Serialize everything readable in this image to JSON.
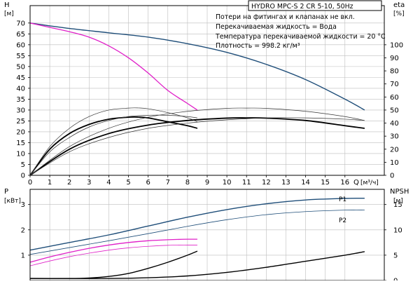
{
  "chart_data": [
    {
      "type": "line",
      "panel": "head-efficiency",
      "title": "HYDRO MPC-S 2 CR 5-10, 50Hz",
      "notes": [
        "Потери на фитингах и клапанах не вкл.",
        "Перекачиваемая жидкость = Вода",
        "Температура перекачиваемой жидкости = 20 °C",
        "Плотность = 998.2 кг/м³"
      ],
      "xlabel": "Q",
      "xunit": "[м³/ч]",
      "xlim": [
        0,
        18
      ],
      "xticks": [
        "0",
        "1",
        "2",
        "3",
        "4",
        "5",
        "6",
        "7",
        "8",
        "9",
        "10",
        "11",
        "12",
        "13",
        "14",
        "15",
        "16"
      ],
      "ylabel_left": "H",
      "yunit_left": "[м]",
      "ylim_left": [
        0,
        78
      ],
      "yticks_left": [
        "0",
        "5",
        "10",
        "15",
        "20",
        "25",
        "30",
        "35",
        "40",
        "45",
        "50",
        "55",
        "60",
        "65",
        "70"
      ],
      "ylabel_right": "eta",
      "yunit_right": "[%]",
      "ylim_right": [
        0,
        130
      ],
      "yticks_right": [
        "0",
        "10",
        "20",
        "30",
        "40",
        "50",
        "60",
        "70",
        "80",
        "90",
        "100"
      ],
      "grid": true,
      "colors": {
        "blue": "#1f4e79",
        "magenta": "#e020c8",
        "black": "#000000",
        "gray": "#333333"
      },
      "series": [
        {
          "axis": "left",
          "color": "blue",
          "width": 1.4,
          "x": [
            0,
            2,
            4,
            6,
            8,
            10,
            12,
            14,
            16,
            17
          ],
          "y": [
            70,
            67.5,
            65.5,
            63.5,
            60.5,
            56.5,
            51,
            44,
            35,
            30
          ]
        },
        {
          "axis": "left",
          "color": "magenta",
          "width": 1.3,
          "x": [
            0,
            1,
            2,
            3,
            4,
            5,
            6,
            7,
            8,
            8.5
          ],
          "y": [
            70,
            68,
            66,
            63.5,
            59.5,
            54,
            47,
            39,
            33,
            30
          ]
        },
        {
          "axis": "right",
          "color": "black",
          "width": 1.8,
          "x": [
            0,
            1,
            2,
            3,
            4,
            5,
            5.5,
            6,
            7,
            8,
            8.5
          ],
          "y": [
            0,
            20,
            32,
            39,
            43,
            44.5,
            44.6,
            44,
            41,
            38,
            36
          ]
        },
        {
          "axis": "right",
          "color": "black",
          "width": 1.8,
          "x": [
            0,
            2,
            4,
            6,
            8,
            10,
            11,
            12,
            14,
            16,
            17
          ],
          "y": [
            0,
            20,
            32,
            38.5,
            42,
            43.8,
            44,
            43.8,
            42,
            38,
            36
          ]
        },
        {
          "axis": "right",
          "color": "gray",
          "width": 0.7,
          "x": [
            0,
            1,
            2,
            3,
            4,
            5,
            5.5,
            6,
            7,
            8,
            8.5
          ],
          "y": [
            0,
            22,
            36,
            45,
            50,
            51.5,
            51.6,
            51,
            48,
            44,
            41
          ]
        },
        {
          "axis": "right",
          "color": "gray",
          "width": 0.7,
          "x": [
            0,
            1,
            2,
            3,
            4,
            5,
            6,
            7,
            8,
            8.5
          ],
          "y": [
            0,
            18,
            29,
            37,
            42,
            45,
            46,
            46,
            45,
            44
          ]
        },
        {
          "axis": "right",
          "color": "gray",
          "width": 0.7,
          "x": [
            0,
            2,
            4,
            6,
            8,
            10,
            11,
            12,
            14,
            16,
            17
          ],
          "y": [
            0,
            22,
            36,
            44.5,
            49,
            51.3,
            51.5,
            51.3,
            49,
            45,
            42
          ]
        },
        {
          "axis": "right",
          "color": "gray",
          "width": 0.7,
          "x": [
            0,
            2,
            4,
            6,
            8,
            10,
            12,
            14,
            16,
            17
          ],
          "y": [
            0,
            18,
            29,
            36,
            40,
            42.5,
            44,
            44,
            43,
            42
          ]
        }
      ]
    },
    {
      "type": "line",
      "panel": "power-npsh",
      "xlim": [
        0,
        18
      ],
      "ylabel_left": "P",
      "yunit_left": "[кВт]",
      "ylim_left": [
        0,
        3.6
      ],
      "yticks_left": [
        "1",
        "2",
        "3"
      ],
      "ylabel_right": "NPSH",
      "yunit_right": "[м]",
      "ylim_right": [
        0,
        18
      ],
      "yticks_right": [
        "0",
        "5",
        "10",
        "15"
      ],
      "grid": true,
      "series": [
        {
          "axis": "left",
          "color": "blue",
          "width": 1.4,
          "name": "P1",
          "x": [
            0,
            2,
            4,
            6,
            8,
            10,
            12,
            14,
            16,
            17
          ],
          "y": [
            1.2,
            1.5,
            1.8,
            2.15,
            2.5,
            2.8,
            3.03,
            3.18,
            3.24,
            3.25
          ]
        },
        {
          "axis": "left",
          "color": "blue",
          "width": 0.8,
          "name": "P2",
          "x": [
            0,
            2,
            4,
            6,
            8,
            10,
            12,
            14,
            16,
            17
          ],
          "y": [
            1.03,
            1.3,
            1.57,
            1.85,
            2.14,
            2.4,
            2.6,
            2.72,
            2.78,
            2.78
          ]
        },
        {
          "axis": "left",
          "color": "magenta",
          "width": 1.3,
          "x": [
            0,
            1,
            2,
            3,
            4,
            5,
            6,
            7,
            8,
            8.5
          ],
          "y": [
            0.72,
            0.93,
            1.11,
            1.27,
            1.4,
            1.5,
            1.57,
            1.61,
            1.63,
            1.63
          ]
        },
        {
          "axis": "left",
          "color": "magenta",
          "width": 0.8,
          "x": [
            0,
            1,
            2,
            3,
            4,
            5,
            6,
            7,
            8,
            8.5
          ],
          "y": [
            0.58,
            0.77,
            0.94,
            1.08,
            1.2,
            1.29,
            1.35,
            1.39,
            1.4,
            1.4
          ]
        },
        {
          "axis": "right",
          "color": "black",
          "width": 1.4,
          "x": [
            0,
            2,
            3,
            4,
            5,
            6,
            7,
            8,
            8.5
          ],
          "y": [
            0.4,
            0.4,
            0.5,
            0.8,
            1.4,
            2.4,
            3.6,
            5.0,
            5.8
          ]
        },
        {
          "axis": "right",
          "color": "black",
          "width": 1.4,
          "x": [
            0,
            4,
            6,
            8,
            10,
            12,
            14,
            16,
            17
          ],
          "y": [
            0.4,
            0.4,
            0.55,
            0.9,
            1.6,
            2.6,
            3.8,
            5.0,
            5.7
          ]
        }
      ]
    }
  ]
}
